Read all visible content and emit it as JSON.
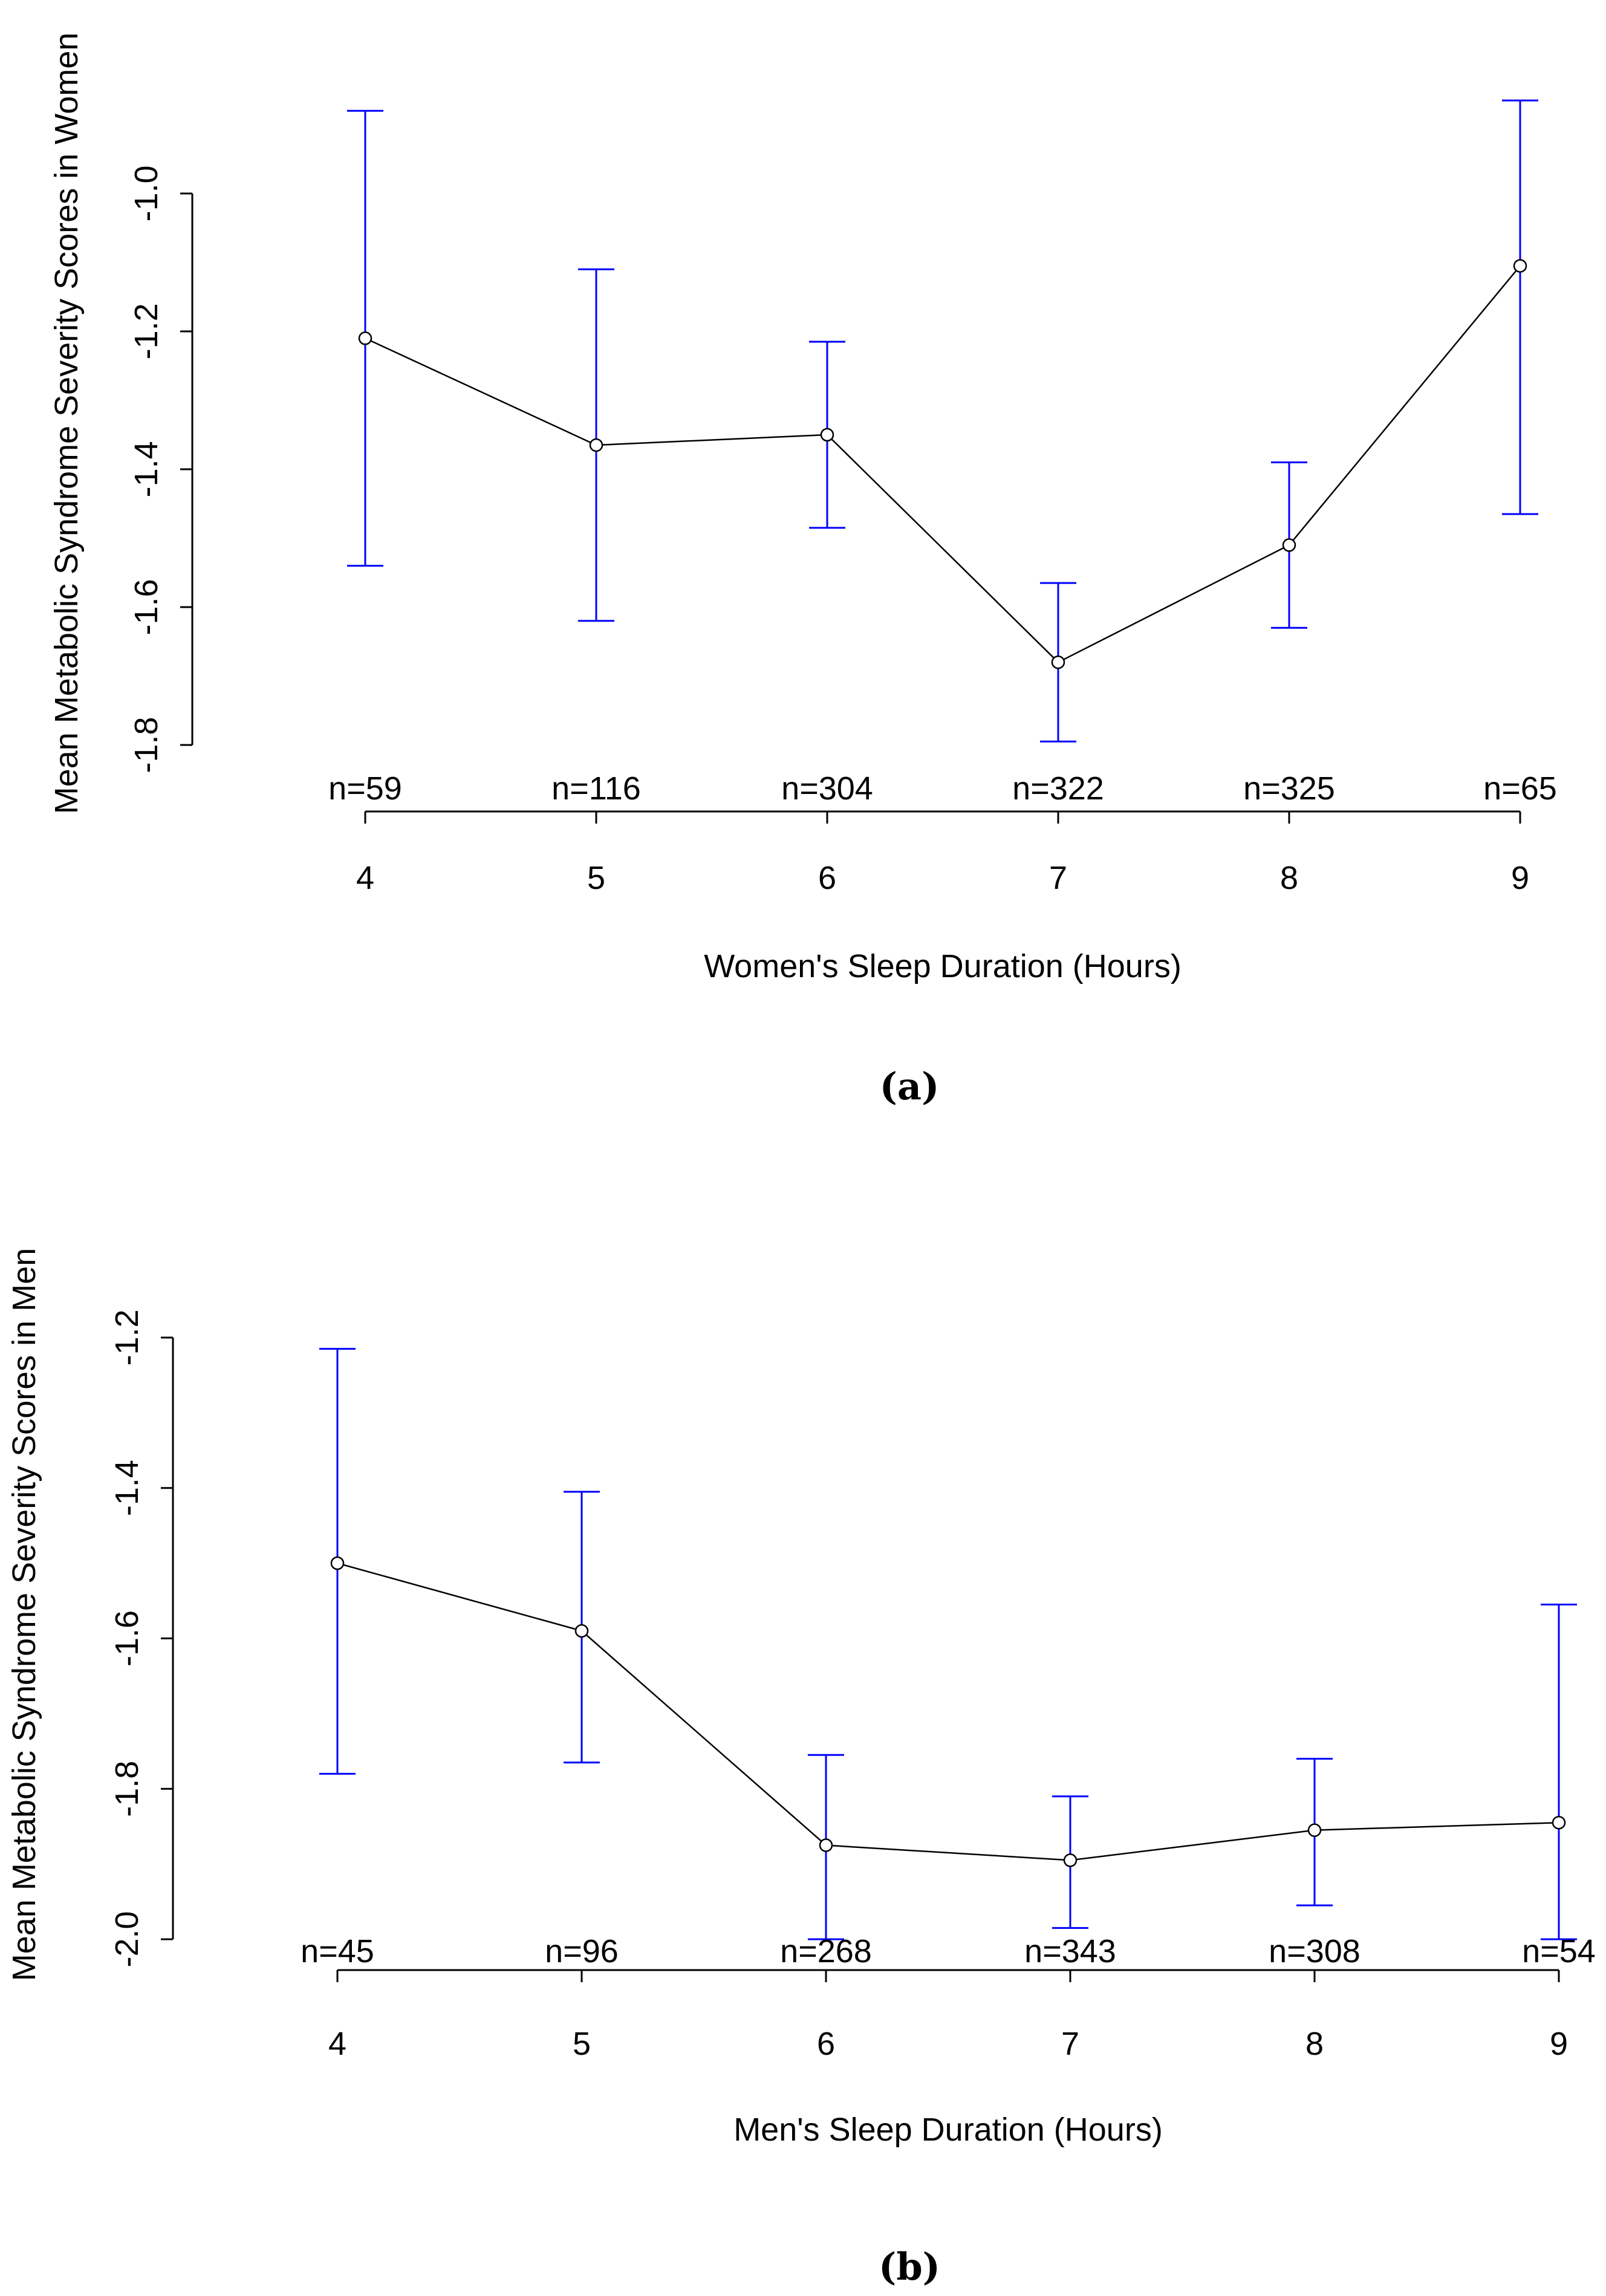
{
  "chart_data": [
    {
      "type": "line",
      "caption": "(a)",
      "xlabel": "Women's Sleep Duration (Hours)",
      "ylabel": "Mean Metabolic Syndrome Severity Scores in Women",
      "x": [
        4,
        5,
        6,
        7,
        8,
        9
      ],
      "x_tick_labels": [
        "4",
        "5",
        "6",
        "7",
        "8",
        "9"
      ],
      "n_labels": [
        "n=59",
        "n=116",
        "n=304",
        "n=322",
        "n=325",
        "n=65"
      ],
      "mean": [
        -1.21,
        -1.365,
        -1.35,
        -1.68,
        -1.51,
        -1.105
      ],
      "lower": [
        -1.54,
        -1.62,
        -1.485,
        -1.795,
        -1.63,
        -1.465
      ],
      "upper": [
        -0.88,
        -1.11,
        -1.215,
        -1.565,
        -1.39,
        -0.865
      ],
      "ylim": [
        -1.8,
        -1.0
      ],
      "y_ticks": [
        -1.8,
        -1.6,
        -1.4,
        -1.2,
        -1.0
      ],
      "y_tick_labels": [
        "-1.8",
        "-1.6",
        "-1.4",
        "-1.2",
        "-1.0"
      ],
      "line_color": "#000000",
      "errorbar_color": "#0000ff"
    },
    {
      "type": "line",
      "caption": "(b)",
      "xlabel": "Men's Sleep Duration (Hours)",
      "ylabel": "Mean Metabolic Syndrome Severity Scores in Men",
      "x": [
        4,
        5,
        6,
        7,
        8,
        9
      ],
      "x_tick_labels": [
        "4",
        "5",
        "6",
        "7",
        "8",
        "9"
      ],
      "n_labels": [
        "n=45",
        "n=96",
        "n=268",
        "n=343",
        "n=308",
        "n=54"
      ],
      "mean": [
        -1.5,
        -1.59,
        -1.875,
        -1.895,
        -1.855,
        -1.845
      ],
      "lower": [
        -1.78,
        -1.765,
        -2.0,
        -1.985,
        -1.955,
        -2.0
      ],
      "upper": [
        -1.215,
        -1.405,
        -1.755,
        -1.81,
        -1.76,
        -1.555
      ],
      "ylim": [
        -2.0,
        -1.2
      ],
      "y_ticks": [
        -2.0,
        -1.8,
        -1.6,
        -1.4,
        -1.2
      ],
      "y_tick_labels": [
        "-2.0",
        "-1.8",
        "-1.6",
        "-1.4",
        "-1.2"
      ],
      "line_color": "#000000",
      "errorbar_color": "#0000ff"
    }
  ]
}
